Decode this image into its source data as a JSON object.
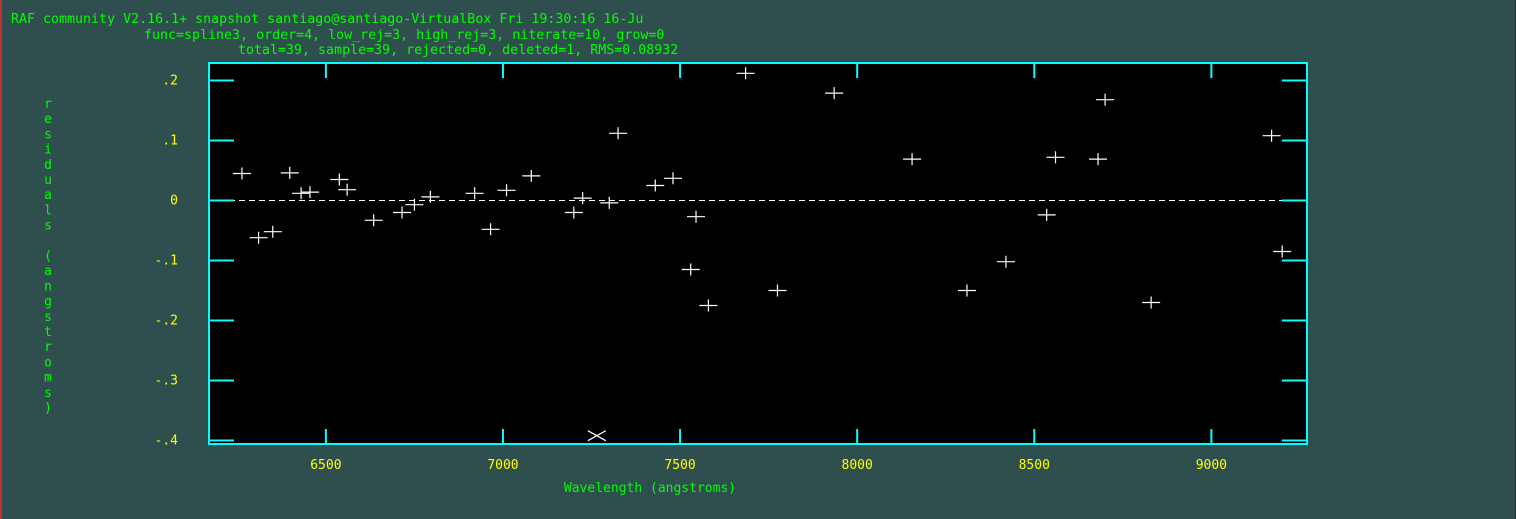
{
  "header": {
    "line1": "RAF community V2.16.1+ snapshot santiago@santiago-VirtualBox Fri 19:30:16 16-Ju",
    "line2": "func=spline3, order=4, low_rej=3, high_rej=3, niterate=10, grow=0",
    "line3": "total=39, sample=39, rejected=0, deleted=1, RMS=0.08932"
  },
  "colors": {
    "background": "#2f4f4f",
    "plot_background": "#000000",
    "frame": "#00ffff",
    "header_text": "#00ff00",
    "tick_labels": "#ffff00",
    "axis_labels": "#00ff00",
    "points": "#ffffff",
    "zero_line": "#ffffff"
  },
  "chart_data": {
    "type": "scatter",
    "xlabel": "Wavelength (angstroms)",
    "ylabel": "residuals (angstroms)",
    "xlim": [
      6170,
      9270
    ],
    "ylim": [
      -0.4,
      0.23
    ],
    "xticks": [
      6500,
      7000,
      7500,
      8000,
      8500,
      9000
    ],
    "xtick_labels": [
      "6500",
      "7000",
      "7500",
      "8000",
      "8500",
      "9000"
    ],
    "yticks": [
      0.2,
      0.1,
      0,
      -0.1,
      -0.2,
      -0.3,
      -0.4
    ],
    "ytick_labels": [
      ".2",
      ".1",
      "0",
      "-.1",
      "-.2",
      "-.3",
      "-.4"
    ],
    "grid": false,
    "zero_line": 0,
    "points": [
      {
        "x": 6263,
        "y": 0.045
      },
      {
        "x": 6310,
        "y": -0.062
      },
      {
        "x": 6350,
        "y": -0.052
      },
      {
        "x": 6398,
        "y": 0.046
      },
      {
        "x": 6430,
        "y": 0.012
      },
      {
        "x": 6455,
        "y": 0.014
      },
      {
        "x": 6538,
        "y": 0.035
      },
      {
        "x": 6560,
        "y": 0.018
      },
      {
        "x": 6635,
        "y": -0.033
      },
      {
        "x": 6715,
        "y": -0.02
      },
      {
        "x": 6750,
        "y": -0.007
      },
      {
        "x": 6795,
        "y": 0.006
      },
      {
        "x": 6920,
        "y": 0.012
      },
      {
        "x": 6965,
        "y": -0.048
      },
      {
        "x": 7010,
        "y": 0.017
      },
      {
        "x": 7080,
        "y": 0.041
      },
      {
        "x": 7200,
        "y": -0.02
      },
      {
        "x": 7225,
        "y": 0.004
      },
      {
        "x": 7300,
        "y": -0.004
      },
      {
        "x": 7325,
        "y": 0.112
      },
      {
        "x": 7430,
        "y": 0.025
      },
      {
        "x": 7480,
        "y": 0.037
      },
      {
        "x": 7530,
        "y": -0.115
      },
      {
        "x": 7545,
        "y": -0.027
      },
      {
        "x": 7580,
        "y": -0.175
      },
      {
        "x": 7685,
        "y": 0.212
      },
      {
        "x": 7775,
        "y": -0.15
      },
      {
        "x": 7935,
        "y": 0.179
      },
      {
        "x": 8155,
        "y": 0.069
      },
      {
        "x": 8310,
        "y": -0.15
      },
      {
        "x": 8420,
        "y": -0.102
      },
      {
        "x": 8535,
        "y": -0.024
      },
      {
        "x": 8560,
        "y": 0.072
      },
      {
        "x": 8680,
        "y": 0.069
      },
      {
        "x": 8700,
        "y": 0.168
      },
      {
        "x": 8830,
        "y": -0.17
      },
      {
        "x": 9170,
        "y": 0.108
      },
      {
        "x": 9200,
        "y": -0.085
      }
    ],
    "deleted_points": [
      {
        "x": 7265,
        "y": -0.392
      }
    ]
  }
}
